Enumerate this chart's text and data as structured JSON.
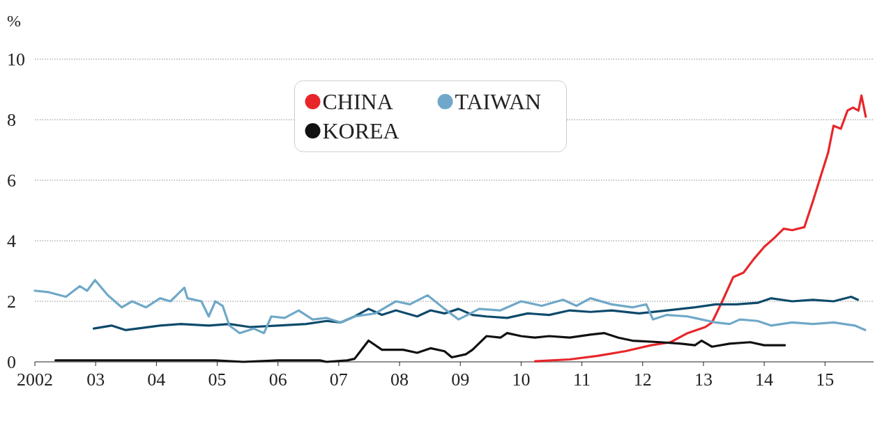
{
  "chart_data": {
    "type": "line",
    "ylabel": "%",
    "xlim": [
      2002,
      2015.8
    ],
    "xticks": [
      {
        "value": 2002,
        "label": "2002"
      },
      {
        "value": 2003,
        "label": "03"
      },
      {
        "value": 2004,
        "label": "04"
      },
      {
        "value": 2005,
        "label": "05"
      },
      {
        "value": 2006,
        "label": "06"
      },
      {
        "value": 2007,
        "label": "07"
      },
      {
        "value": 2008,
        "label": "08"
      },
      {
        "value": 2009,
        "label": "09"
      },
      {
        "value": 2010,
        "label": "10"
      },
      {
        "value": 2011,
        "label": "11"
      },
      {
        "value": 2012,
        "label": "12"
      },
      {
        "value": 2013,
        "label": "13"
      },
      {
        "value": 2014,
        "label": "14"
      },
      {
        "value": 2015,
        "label": "15"
      }
    ],
    "ylim": [
      0,
      10
    ],
    "yticks": [
      0,
      2,
      4,
      6,
      8,
      10
    ],
    "grid": "y",
    "legend": "top",
    "line_style": "solid",
    "series": [
      {
        "name": "CHINA",
        "color": "#e8262a",
        "x": [
          2010.23,
          2010.8,
          2011.26,
          2011.71,
          2012.14,
          2012.46,
          2012.74,
          2013.03,
          2013.14,
          2013.31,
          2013.49,
          2013.66,
          2013.83,
          2014.0,
          2014.17,
          2014.32,
          2014.46,
          2014.66,
          2014.8,
          2014.94,
          2015.05,
          2015.14,
          2015.26,
          2015.37,
          2015.46,
          2015.55,
          2015.6,
          2015.67
        ],
        "values": [
          0.02,
          0.08,
          0.2,
          0.35,
          0.55,
          0.65,
          0.95,
          1.15,
          1.3,
          2.0,
          2.8,
          2.95,
          3.4,
          3.8,
          4.1,
          4.4,
          4.35,
          4.45,
          5.3,
          6.2,
          6.9,
          7.8,
          7.7,
          8.3,
          8.4,
          8.3,
          8.8,
          8.1
        ]
      },
      {
        "color": "#0d4a6b",
        "x": [
          2002.97,
          2003.26,
          2003.49,
          2004.06,
          2004.4,
          2004.86,
          2005.2,
          2005.54,
          2006.0,
          2006.46,
          2006.8,
          2007.03,
          2007.26,
          2007.49,
          2007.71,
          2007.94,
          2008.29,
          2008.51,
          2008.74,
          2008.97,
          2009.2,
          2009.43,
          2009.77,
          2010.11,
          2010.46,
          2010.8,
          2011.14,
          2011.49,
          2011.94,
          2012.4,
          2012.86,
          2013.2,
          2013.54,
          2013.89,
          2014.11,
          2014.46,
          2014.8,
          2015.14,
          2015.43,
          2015.54
        ],
        "values": [
          1.1,
          1.2,
          1.05,
          1.2,
          1.25,
          1.2,
          1.25,
          1.15,
          1.2,
          1.25,
          1.35,
          1.3,
          1.5,
          1.75,
          1.55,
          1.7,
          1.5,
          1.7,
          1.6,
          1.75,
          1.55,
          1.5,
          1.45,
          1.6,
          1.55,
          1.7,
          1.65,
          1.7,
          1.6,
          1.7,
          1.8,
          1.9,
          1.9,
          1.95,
          2.1,
          2.0,
          2.05,
          2.0,
          2.15,
          2.05
        ]
      },
      {
        "name": "TAIWAN",
        "color": "#6fa8c8",
        "x": [
          2002.0,
          2002.23,
          2002.51,
          2002.74,
          2002.86,
          2002.99,
          2003.2,
          2003.43,
          2003.6,
          2003.83,
          2004.06,
          2004.23,
          2004.46,
          2004.51,
          2004.74,
          2004.86,
          2004.97,
          2005.09,
          2005.2,
          2005.37,
          2005.6,
          2005.77,
          2005.89,
          2006.11,
          2006.34,
          2006.57,
          2006.8,
          2007.03,
          2007.26,
          2007.6,
          2007.94,
          2008.17,
          2008.46,
          2008.74,
          2008.97,
          2009.31,
          2009.66,
          2010.0,
          2010.34,
          2010.69,
          2010.91,
          2011.14,
          2011.49,
          2011.83,
          2012.06,
          2012.17,
          2012.4,
          2012.74,
          2012.97,
          2013.2,
          2013.43,
          2013.6,
          2013.89,
          2014.11,
          2014.46,
          2014.8,
          2015.14,
          2015.49,
          2015.66
        ],
        "values": [
          2.35,
          2.3,
          2.15,
          2.5,
          2.35,
          2.7,
          2.2,
          1.8,
          2.0,
          1.8,
          2.1,
          2.0,
          2.45,
          2.1,
          2.0,
          1.5,
          2.0,
          1.85,
          1.2,
          0.95,
          1.1,
          0.95,
          1.5,
          1.45,
          1.7,
          1.4,
          1.45,
          1.3,
          1.5,
          1.6,
          2.0,
          1.9,
          2.2,
          1.75,
          1.4,
          1.75,
          1.7,
          2.0,
          1.85,
          2.05,
          1.85,
          2.1,
          1.9,
          1.8,
          1.9,
          1.4,
          1.55,
          1.5,
          1.4,
          1.3,
          1.25,
          1.4,
          1.35,
          1.2,
          1.3,
          1.25,
          1.3,
          1.2,
          1.05
        ]
      },
      {
        "name": "KOREA",
        "color": "#111111",
        "x": [
          2002.34,
          2003.14,
          2004.29,
          2004.97,
          2005.43,
          2006.0,
          2006.69,
          2006.8,
          2007.14,
          2007.26,
          2007.49,
          2007.71,
          2008.06,
          2008.29,
          2008.51,
          2008.74,
          2008.86,
          2009.09,
          2009.2,
          2009.43,
          2009.66,
          2009.77,
          2010.0,
          2010.23,
          2010.46,
          2010.8,
          2011.14,
          2011.37,
          2011.6,
          2011.83,
          2012.29,
          2012.63,
          2012.86,
          2012.97,
          2013.14,
          2013.43,
          2013.77,
          2014.0,
          2014.34
        ],
        "values": [
          0.05,
          0.05,
          0.05,
          0.05,
          0.0,
          0.05,
          0.05,
          0.0,
          0.05,
          0.1,
          0.7,
          0.4,
          0.4,
          0.3,
          0.45,
          0.35,
          0.15,
          0.25,
          0.4,
          0.85,
          0.8,
          0.95,
          0.85,
          0.8,
          0.85,
          0.8,
          0.9,
          0.95,
          0.8,
          0.7,
          0.65,
          0.6,
          0.55,
          0.7,
          0.5,
          0.6,
          0.65,
          0.55,
          0.55
        ]
      }
    ]
  }
}
